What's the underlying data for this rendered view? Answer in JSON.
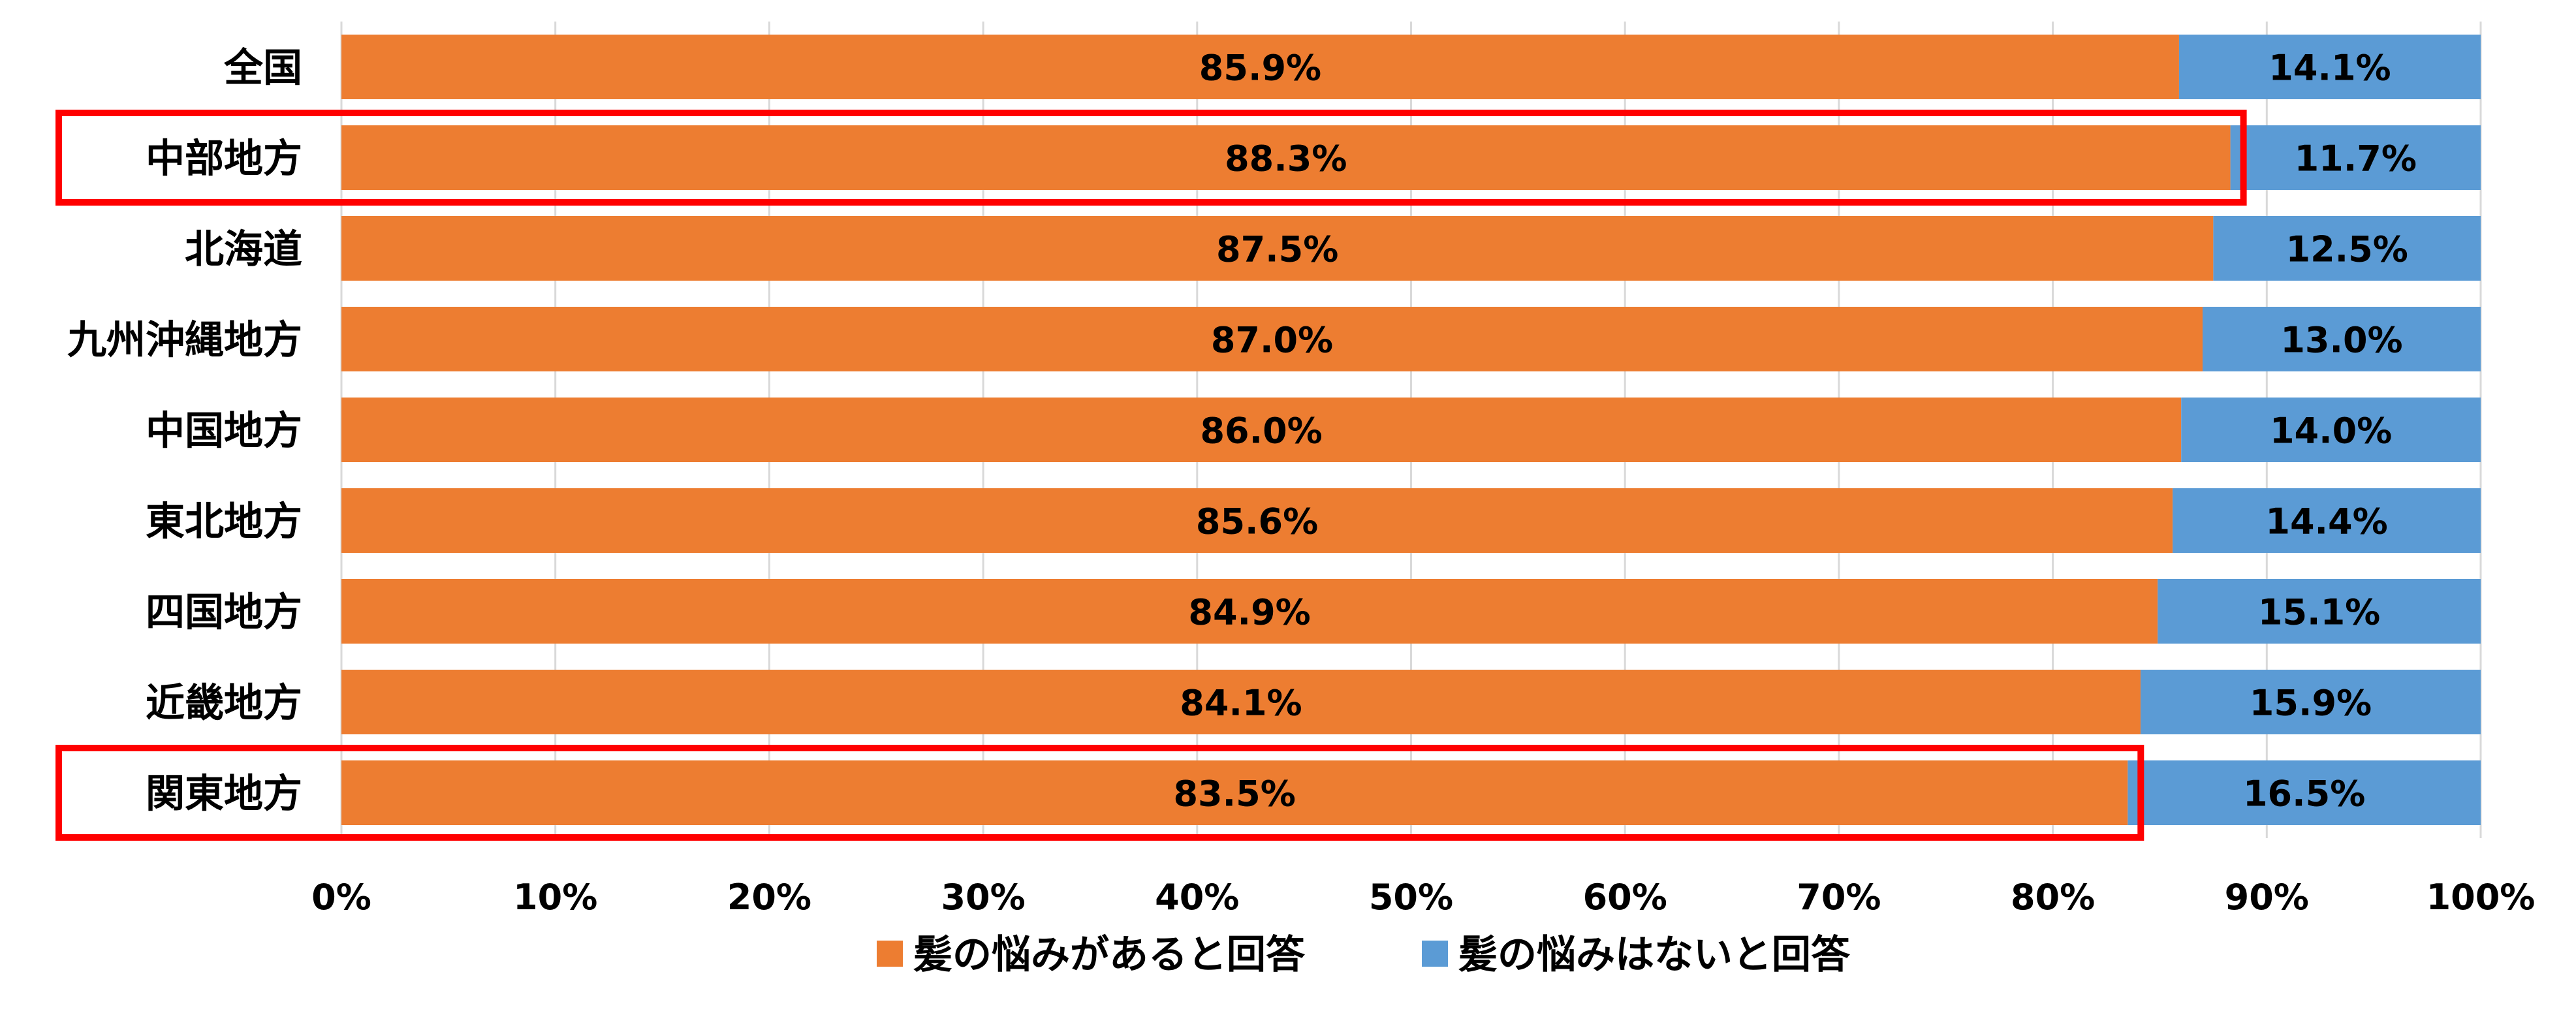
{
  "chart_data": {
    "type": "bar",
    "orientation": "horizontal",
    "stacked": true,
    "categories": [
      "全国",
      "中部地方",
      "北海道",
      "九州沖縄地方",
      "中国地方",
      "東北地方",
      "四国地方",
      "近畿地方",
      "関東地方"
    ],
    "series": [
      {
        "name": "髪の悩みがあると回答",
        "color": "#ED7D31",
        "values": [
          85.9,
          88.3,
          87.5,
          87.0,
          86.0,
          85.6,
          84.9,
          84.1,
          83.5
        ],
        "labels": [
          "85.9%",
          "88.3%",
          "87.5%",
          "87.0%",
          "86.0%",
          "85.6%",
          "84.9%",
          "84.1%",
          "83.5%"
        ]
      },
      {
        "name": "髪の悩みはないと回答",
        "color": "#5B9BD5",
        "values": [
          14.1,
          11.7,
          12.5,
          13.0,
          14.0,
          14.4,
          15.1,
          15.9,
          16.5
        ],
        "labels": [
          "14.1%",
          "11.7%",
          "12.5%",
          "13.0%",
          "14.0%",
          "14.4%",
          "15.1%",
          "15.9%",
          "16.5%"
        ]
      }
    ],
    "xlim": [
      0,
      100
    ],
    "x_ticks": [
      "0%",
      "10%",
      "20%",
      "30%",
      "40%",
      "50%",
      "60%",
      "70%",
      "80%",
      "90%",
      "100%"
    ],
    "grid": true,
    "legend_position": "bottom",
    "highlighted_categories": [
      "中部地方",
      "関東地方"
    ],
    "highlight_color": "#FF0000",
    "title": "",
    "xlabel": "",
    "ylabel": ""
  }
}
